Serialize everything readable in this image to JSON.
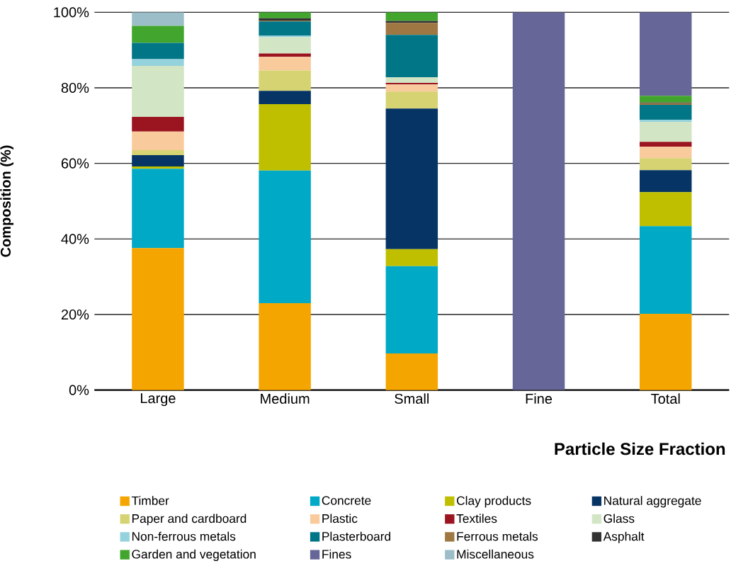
{
  "chart_data": {
    "type": "bar",
    "stacked": true,
    "xlabel": "Particle Size Fraction",
    "ylabel": "Composition (%)",
    "categories": [
      "Large",
      "Medium",
      "Small",
      "Fine",
      "Total"
    ],
    "ylim": [
      0,
      100
    ],
    "yticks": [
      {
        "value": 0,
        "label": "0%"
      },
      {
        "value": 20,
        "label": "20%"
      },
      {
        "value": 40,
        "label": "40%"
      },
      {
        "value": 60,
        "label": "60%"
      },
      {
        "value": 80,
        "label": "80%"
      },
      {
        "value": 100,
        "label": "100%"
      }
    ],
    "grid": "y",
    "legend": "bottom",
    "series": [
      {
        "name": "Timber",
        "color": "#f5a500",
        "values": [
          37.6,
          23.0,
          9.7,
          0,
          20.2
        ]
      },
      {
        "name": "Concrete",
        "color": "#00aac6",
        "values": [
          21.0,
          35.1,
          23.1,
          0,
          23.2
        ]
      },
      {
        "name": "Clay products",
        "color": "#bfbf00",
        "values": [
          0.6,
          17.6,
          4.5,
          0,
          9.0
        ]
      },
      {
        "name": "Natural aggregate",
        "color": "#063464",
        "values": [
          3.0,
          3.5,
          37.2,
          0,
          5.8
        ]
      },
      {
        "name": "Paper and cardboard",
        "color": "#d6d372",
        "values": [
          1.3,
          5.4,
          4.5,
          0,
          3.2
        ]
      },
      {
        "name": "Plastic",
        "color": "#f9cb9c",
        "values": [
          4.9,
          3.6,
          1.9,
          0,
          3.0
        ]
      },
      {
        "name": "Textiles",
        "color": "#9b1520",
        "values": [
          3.9,
          0.9,
          0.4,
          0,
          1.3
        ]
      },
      {
        "name": "Glass",
        "color": "#d2e5c4",
        "values": [
          13.5,
          4.3,
          1.5,
          0,
          5.3
        ]
      },
      {
        "name": "Non-ferrous metals",
        "color": "#94d2de",
        "values": [
          1.8,
          0.4,
          0,
          0,
          0.5
        ]
      },
      {
        "name": "Plasterboard",
        "color": "#007687",
        "values": [
          4.3,
          3.8,
          11.2,
          0,
          4.0
        ]
      },
      {
        "name": "Ferrous metals",
        "color": "#9e7742",
        "values": [
          0,
          0.2,
          3.2,
          0,
          0.4
        ]
      },
      {
        "name": "Asphalt",
        "color": "#333333",
        "values": [
          0,
          0.6,
          0.5,
          0,
          0.2
        ]
      },
      {
        "name": "Garden and vegetation",
        "color": "#42a52d",
        "values": [
          4.5,
          1.6,
          2.3,
          0,
          1.8
        ]
      },
      {
        "name": "Fines",
        "color": "#676699",
        "values": [
          0,
          0,
          0,
          100,
          22.1
        ]
      },
      {
        "name": "Miscellaneous",
        "color": "#9bbec8",
        "values": [
          3.6,
          0,
          0,
          0,
          0
        ]
      }
    ]
  }
}
